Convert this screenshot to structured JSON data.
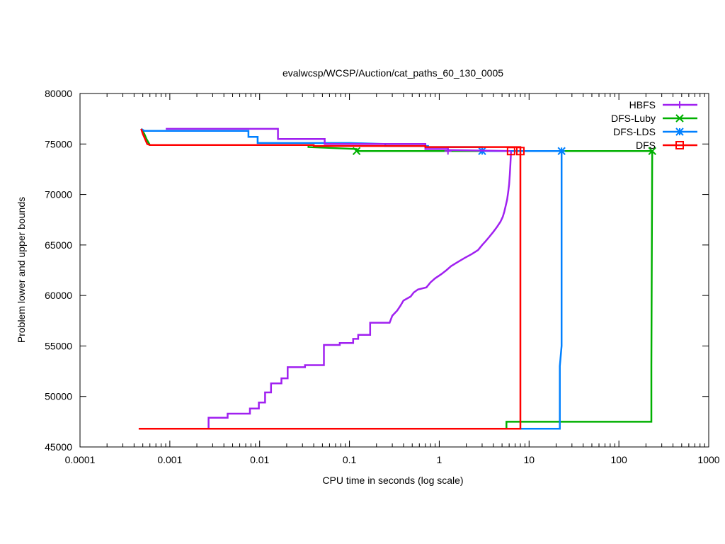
{
  "chart_data": {
    "type": "line",
    "title": "evalwcsp/WCSP/Auction/cat_paths_60_130_0005",
    "xlabel": "CPU time in seconds (log scale)",
    "ylabel": "Problem lower and upper bounds",
    "x_scale": "log",
    "xlim": [
      0.0001,
      1000
    ],
    "ylim": [
      45000,
      80000
    ],
    "x_ticks": [
      {
        "v": 0.0001,
        "label": "0.0001"
      },
      {
        "v": 0.001,
        "label": "0.001"
      },
      {
        "v": 0.01,
        "label": "0.01"
      },
      {
        "v": 0.1,
        "label": "0.1"
      },
      {
        "v": 1,
        "label": "1"
      },
      {
        "v": 10,
        "label": "10"
      },
      {
        "v": 100,
        "label": "100"
      },
      {
        "v": 1000,
        "label": "1000"
      }
    ],
    "y_ticks": [
      {
        "v": 45000,
        "label": "45000"
      },
      {
        "v": 50000,
        "label": "50000"
      },
      {
        "v": 55000,
        "label": "55000"
      },
      {
        "v": 60000,
        "label": "60000"
      },
      {
        "v": 65000,
        "label": "65000"
      },
      {
        "v": 70000,
        "label": "70000"
      },
      {
        "v": 75000,
        "label": "75000"
      },
      {
        "v": 80000,
        "label": "80000"
      }
    ],
    "grid": false,
    "legend_position": "top-right",
    "series": [
      {
        "name": "HBFS",
        "color": "#a020f0",
        "marker": "plus",
        "upper": [
          [
            0.0009,
            76500
          ],
          [
            0.016,
            76500
          ],
          [
            0.016,
            75500
          ],
          [
            0.053,
            75500
          ],
          [
            0.053,
            75000
          ],
          [
            0.7,
            75000
          ],
          [
            0.7,
            74500
          ],
          [
            1.25,
            74500
          ],
          [
            1.25,
            74400
          ],
          [
            6.3,
            74300
          ]
        ],
        "lower": [
          [
            0.0027,
            46800
          ],
          [
            0.0027,
            47900
          ],
          [
            0.0044,
            47900
          ],
          [
            0.0044,
            48300
          ],
          [
            0.0078,
            48300
          ],
          [
            0.0078,
            48800
          ],
          [
            0.0098,
            48800
          ],
          [
            0.0098,
            49400
          ],
          [
            0.0115,
            49400
          ],
          [
            0.0115,
            50400
          ],
          [
            0.0134,
            50400
          ],
          [
            0.0134,
            51300
          ],
          [
            0.0175,
            51300
          ],
          [
            0.0175,
            51800
          ],
          [
            0.0205,
            51800
          ],
          [
            0.0205,
            52900
          ],
          [
            0.032,
            52900
          ],
          [
            0.032,
            53100
          ],
          [
            0.052,
            53100
          ],
          [
            0.052,
            55100
          ],
          [
            0.078,
            55100
          ],
          [
            0.078,
            55300
          ],
          [
            0.11,
            55300
          ],
          [
            0.11,
            55700
          ],
          [
            0.125,
            55700
          ],
          [
            0.125,
            56100
          ],
          [
            0.17,
            56100
          ],
          [
            0.17,
            57300
          ],
          [
            0.28,
            57300
          ],
          [
            0.3,
            58000
          ],
          [
            0.34,
            58500
          ],
          [
            0.37,
            59000
          ],
          [
            0.4,
            59500
          ],
          [
            0.48,
            59900
          ],
          [
            0.52,
            60300
          ],
          [
            0.58,
            60600
          ],
          [
            0.72,
            60800
          ],
          [
            0.8,
            61300
          ],
          [
            0.9,
            61700
          ],
          [
            1.05,
            62100
          ],
          [
            1.2,
            62500
          ],
          [
            1.35,
            62900
          ],
          [
            1.6,
            63300
          ],
          [
            1.9,
            63700
          ],
          [
            2.3,
            64100
          ],
          [
            2.7,
            64500
          ],
          [
            3.0,
            65000
          ],
          [
            3.3,
            65400
          ],
          [
            3.6,
            65800
          ],
          [
            4.0,
            66300
          ],
          [
            4.4,
            66800
          ],
          [
            4.8,
            67300
          ],
          [
            5.1,
            67800
          ],
          [
            5.3,
            68300
          ],
          [
            5.5,
            68900
          ],
          [
            5.7,
            69500
          ],
          [
            5.85,
            70200
          ],
          [
            6.0,
            71000
          ],
          [
            6.1,
            72000
          ],
          [
            6.2,
            73000
          ],
          [
            6.25,
            73700
          ],
          [
            6.3,
            74300
          ]
        ],
        "marker_points": [
          [
            1.25,
            74300
          ]
        ]
      },
      {
        "name": "DFS-Luby",
        "color": "#00b000",
        "marker": "cross",
        "upper": [
          [
            0.00048,
            76500
          ],
          [
            0.00052,
            76000
          ],
          [
            0.00055,
            75500
          ],
          [
            0.0006,
            74900
          ],
          [
            0.035,
            74900
          ],
          [
            0.035,
            74700
          ],
          [
            0.12,
            74500
          ],
          [
            0.12,
            74300
          ],
          [
            235,
            74300
          ]
        ],
        "lower": [
          [
            5.6,
            46800
          ],
          [
            5.6,
            47500
          ],
          [
            230,
            47500
          ],
          [
            230,
            53000
          ],
          [
            235,
            74300
          ]
        ],
        "marker_points": [
          [
            0.12,
            74300
          ],
          [
            235,
            74300
          ]
        ]
      },
      {
        "name": "DFS-LDS",
        "color": "#0080ff",
        "marker": "star",
        "upper": [
          [
            0.00048,
            76500
          ],
          [
            0.00052,
            76300
          ],
          [
            0.0075,
            76300
          ],
          [
            0.0075,
            75700
          ],
          [
            0.0095,
            75700
          ],
          [
            0.0095,
            75100
          ],
          [
            0.1,
            75100
          ],
          [
            0.25,
            75000
          ],
          [
            0.25,
            74800
          ],
          [
            0.75,
            74800
          ],
          [
            0.75,
            74700
          ],
          [
            3.0,
            74700
          ],
          [
            3.0,
            74300
          ],
          [
            23,
            74300
          ]
        ],
        "lower": [
          [
            5.6,
            46800
          ],
          [
            22,
            46800
          ],
          [
            22,
            53000
          ],
          [
            23,
            55000
          ],
          [
            23,
            74300
          ]
        ],
        "marker_points": [
          [
            3.0,
            74300
          ],
          [
            23,
            74300
          ]
        ]
      },
      {
        "name": "DFS",
        "color": "#ff0000",
        "marker": "square",
        "upper": [
          [
            0.00048,
            76500
          ],
          [
            0.0005,
            76000
          ],
          [
            0.00053,
            75500
          ],
          [
            0.00056,
            75000
          ],
          [
            0.0006,
            74900
          ],
          [
            0.04,
            74900
          ],
          [
            0.04,
            74800
          ],
          [
            0.7,
            74800
          ],
          [
            0.7,
            74700
          ],
          [
            8.0,
            74700
          ],
          [
            8.0,
            74300
          ]
        ],
        "lower": [
          [
            0.00045,
            46800
          ],
          [
            8.0,
            46800
          ],
          [
            8.0,
            74300
          ]
        ],
        "marker_points": [
          [
            6.3,
            74300
          ],
          [
            8.0,
            74300
          ]
        ]
      }
    ]
  }
}
